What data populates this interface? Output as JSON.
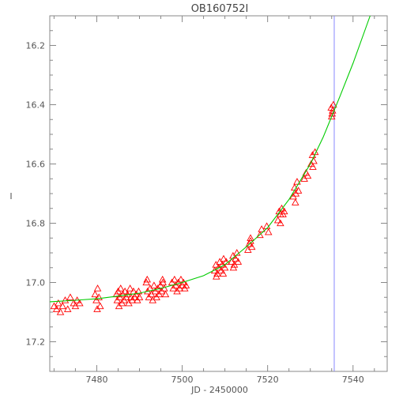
{
  "chart_data": {
    "type": "scatter",
    "title": "OB160752I",
    "xlabel": "JD - 2450000",
    "ylabel": "I",
    "xlim": [
      7469,
      7548
    ],
    "ylim": [
      17.3,
      16.1
    ],
    "y_inverted": true,
    "x_ticks": [
      7480,
      7500,
      7520,
      7540
    ],
    "y_ticks": [
      16.2,
      16.4,
      16.6,
      16.8,
      17.0,
      17.2
    ],
    "y_tick_labels": [
      "16.2",
      "16.4",
      "16.6",
      "16.8",
      "17.0",
      "17.2"
    ],
    "marker": "triangle",
    "colors": {
      "points": "#ff0000",
      "model": "#00cc00",
      "marker_line": "#8888ff",
      "axes": "#888888"
    },
    "vertical_line_x": 7535.6,
    "model_curve": {
      "name": "",
      "x": [
        7469,
        7475,
        7480,
        7485,
        7490,
        7495,
        7500,
        7505,
        7510,
        7515,
        7520,
        7525,
        7530,
        7533,
        7535,
        7537,
        7540,
        7543,
        7544
      ],
      "y": [
        17.065,
        17.06,
        17.055,
        17.046,
        17.036,
        17.02,
        17.0,
        16.977,
        16.94,
        16.88,
        16.815,
        16.72,
        16.6,
        16.51,
        16.44,
        16.37,
        16.26,
        16.14,
        16.1
      ]
    },
    "series": [
      {
        "name": "",
        "points": [
          [
            7470.0,
            17.08
          ],
          [
            7470.6,
            17.09
          ],
          [
            7471.0,
            17.07
          ],
          [
            7471.5,
            17.1
          ],
          [
            7472.0,
            17.08
          ],
          [
            7472.6,
            17.06
          ],
          [
            7473.2,
            17.09
          ],
          [
            7473.8,
            17.05
          ],
          [
            7474.6,
            17.07
          ],
          [
            7475.0,
            17.08
          ],
          [
            7475.4,
            17.06
          ],
          [
            7476.0,
            17.07
          ],
          [
            7479.6,
            17.04
          ],
          [
            7479.9,
            17.06
          ],
          [
            7480.2,
            17.02
          ],
          [
            7480.5,
            17.05
          ],
          [
            7480.8,
            17.08
          ],
          [
            7480.1,
            17.09
          ],
          [
            7484.6,
            17.04
          ],
          [
            7484.8,
            17.06
          ],
          [
            7485.0,
            17.03
          ],
          [
            7485.2,
            17.08
          ],
          [
            7485.4,
            17.05
          ],
          [
            7485.6,
            17.02
          ],
          [
            7485.9,
            17.07
          ],
          [
            7486.1,
            17.04
          ],
          [
            7486.4,
            17.06
          ],
          [
            7486.6,
            17.03
          ],
          [
            7486.9,
            17.05
          ],
          [
            7487.2,
            17.04
          ],
          [
            7487.5,
            17.07
          ],
          [
            7487.8,
            17.02
          ],
          [
            7488.0,
            17.05
          ],
          [
            7488.3,
            17.06
          ],
          [
            7488.6,
            17.03
          ],
          [
            7488.9,
            17.05
          ],
          [
            7489.2,
            17.04
          ],
          [
            7489.5,
            17.06
          ],
          [
            7489.8,
            17.03
          ],
          [
            7490.0,
            17.05
          ],
          [
            7491.6,
            17.0
          ],
          [
            7491.9,
            17.03
          ],
          [
            7492.2,
            17.05
          ],
          [
            7492.5,
            17.02
          ],
          [
            7492.8,
            17.04
          ],
          [
            7493.1,
            17.06
          ],
          [
            7493.4,
            17.01
          ],
          [
            7493.7,
            17.03
          ],
          [
            7494.0,
            17.05
          ],
          [
            7494.3,
            17.02
          ],
          [
            7494.6,
            17.04
          ],
          [
            7494.9,
            17.01
          ],
          [
            7495.2,
            17.03
          ],
          [
            7495.5,
            17.0
          ],
          [
            7495.8,
            17.02
          ],
          [
            7496.1,
            17.04
          ],
          [
            7491.8,
            16.99
          ],
          [
            7495.4,
            16.99
          ],
          [
            7497.6,
            17.0
          ],
          [
            7497.9,
            17.02
          ],
          [
            7498.2,
            16.99
          ],
          [
            7498.5,
            17.01
          ],
          [
            7498.8,
            17.03
          ],
          [
            7499.1,
            17.0
          ],
          [
            7499.4,
            17.02
          ],
          [
            7499.7,
            16.99
          ],
          [
            7500.0,
            17.01
          ],
          [
            7500.3,
            17.0
          ],
          [
            7500.6,
            17.02
          ],
          [
            7500.9,
            17.01
          ],
          [
            7507.6,
            16.96
          ],
          [
            7507.9,
            16.94
          ],
          [
            7508.2,
            16.97
          ],
          [
            7508.5,
            16.95
          ],
          [
            7508.8,
            16.93
          ],
          [
            7509.1,
            16.96
          ],
          [
            7509.4,
            16.94
          ],
          [
            7509.7,
            16.92
          ],
          [
            7510.0,
            16.95
          ],
          [
            7510.3,
            16.93
          ],
          [
            7508.0,
            16.98
          ],
          [
            7509.6,
            16.97
          ],
          [
            7511.6,
            16.93
          ],
          [
            7511.9,
            16.91
          ],
          [
            7512.2,
            16.94
          ],
          [
            7512.5,
            16.92
          ],
          [
            7512.8,
            16.9
          ],
          [
            7513.1,
            16.93
          ],
          [
            7512.0,
            16.95
          ],
          [
            7515.4,
            16.89
          ],
          [
            7515.7,
            16.87
          ],
          [
            7516.0,
            16.86
          ],
          [
            7516.3,
            16.88
          ],
          [
            7516.0,
            16.85
          ],
          [
            7518.2,
            16.84
          ],
          [
            7518.6,
            16.82
          ],
          [
            7519.8,
            16.81
          ],
          [
            7520.2,
            16.83
          ],
          [
            7522.4,
            16.79
          ],
          [
            7522.7,
            16.76
          ],
          [
            7523.0,
            16.77
          ],
          [
            7523.3,
            16.75
          ],
          [
            7523.6,
            16.77
          ],
          [
            7523.0,
            16.8
          ],
          [
            7523.9,
            16.76
          ],
          [
            7526.0,
            16.71
          ],
          [
            7526.3,
            16.68
          ],
          [
            7526.6,
            16.7
          ],
          [
            7526.9,
            16.66
          ],
          [
            7527.2,
            16.69
          ],
          [
            7526.5,
            16.73
          ],
          [
            7528.6,
            16.65
          ],
          [
            7529.0,
            16.63
          ],
          [
            7529.4,
            16.64
          ],
          [
            7530.2,
            16.6
          ],
          [
            7530.5,
            16.57
          ],
          [
            7530.8,
            16.59
          ],
          [
            7531.1,
            16.56
          ],
          [
            7530.6,
            16.61
          ],
          [
            7534.9,
            16.41
          ],
          [
            7535.1,
            16.43
          ],
          [
            7535.2,
            16.42
          ],
          [
            7535.4,
            16.4
          ],
          [
            7535.0,
            16.44
          ]
        ]
      }
    ],
    "grid": false
  }
}
